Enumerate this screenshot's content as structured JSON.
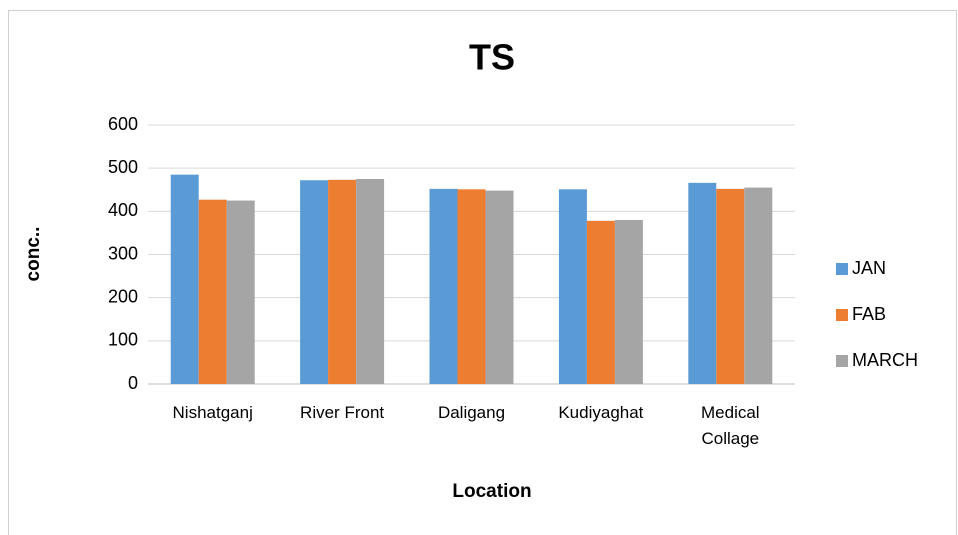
{
  "chart_data": {
    "type": "bar",
    "title": "TS",
    "x_label": "Location",
    "y_label": "conc..",
    "categories": [
      "Nishatganj",
      "River Front",
      "Daligang",
      "Kudiyaghat",
      "Medical Collage"
    ],
    "series": [
      {
        "name": "JAN",
        "color": "#5b9bd5",
        "values": [
          485,
          472,
          452,
          451,
          466
        ]
      },
      {
        "name": "FAB",
        "color": "#ed7d31",
        "values": [
          427,
          473,
          451,
          378,
          452
        ]
      },
      {
        "name": "MARCH",
        "color": "#a5a5a5",
        "values": [
          425,
          475,
          448,
          380,
          455
        ]
      }
    ],
    "ylim": [
      0,
      600
    ],
    "yticks": [
      0,
      100,
      200,
      300,
      400,
      500,
      600
    ],
    "grid": true,
    "legend": "right"
  }
}
